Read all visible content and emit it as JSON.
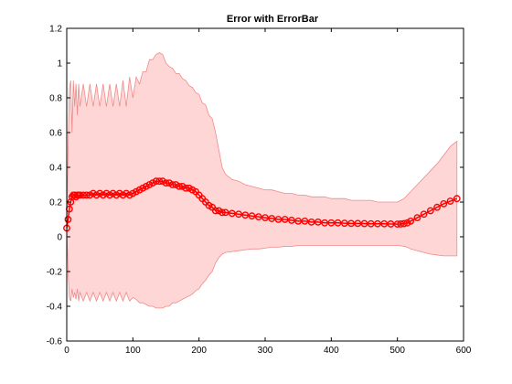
{
  "chart_data": {
    "type": "area",
    "title": "Error with ErrorBar",
    "xlabel": "",
    "ylabel": "",
    "xlim": [
      0,
      600
    ],
    "ylim": [
      -0.6,
      1.2
    ],
    "grid": false,
    "x_ticks": [
      0,
      100,
      200,
      300,
      400,
      500,
      600
    ],
    "x_tick_labels": [
      "0",
      "100",
      "200",
      "300",
      "400",
      "500",
      "600"
    ],
    "y_ticks": [
      -0.6,
      -0.4,
      -0.2,
      0,
      0.2,
      0.4,
      0.6,
      0.8,
      1,
      1.2
    ],
    "y_tick_labels": [
      "-0.6",
      "-0.4",
      "-0.2",
      "0",
      "0.2",
      "0.4",
      "0.6",
      "0.8",
      "1",
      "1.2"
    ],
    "colors": {
      "band_fill": "#ffd6d6",
      "band_edge": "#f08a8a",
      "line": "#ff0000"
    },
    "series": [
      {
        "marker": "circle",
        "x": [
          0,
          2,
          4,
          6,
          8,
          10,
          12,
          14,
          16,
          18,
          20,
          25,
          30,
          35,
          40,
          45,
          50,
          55,
          60,
          65,
          70,
          75,
          80,
          85,
          90,
          95,
          100,
          105,
          110,
          115,
          120,
          125,
          130,
          135,
          140,
          145,
          150,
          155,
          160,
          165,
          170,
          175,
          180,
          185,
          190,
          195,
          200,
          205,
          210,
          215,
          220,
          225,
          230,
          235,
          240,
          250,
          260,
          270,
          280,
          290,
          300,
          310,
          320,
          330,
          340,
          350,
          360,
          370,
          380,
          390,
          400,
          410,
          420,
          430,
          440,
          450,
          460,
          470,
          480,
          490,
          500,
          505,
          510,
          515,
          520,
          530,
          540,
          550,
          560,
          570,
          580,
          590
        ],
        "y": [
          0.05,
          0.1,
          0.16,
          0.2,
          0.23,
          0.24,
          0.24,
          0.23,
          0.24,
          0.24,
          0.24,
          0.24,
          0.24,
          0.24,
          0.25,
          0.24,
          0.25,
          0.24,
          0.25,
          0.24,
          0.25,
          0.24,
          0.25,
          0.24,
          0.25,
          0.24,
          0.25,
          0.26,
          0.27,
          0.28,
          0.29,
          0.3,
          0.31,
          0.32,
          0.32,
          0.32,
          0.31,
          0.31,
          0.3,
          0.3,
          0.29,
          0.29,
          0.28,
          0.28,
          0.27,
          0.26,
          0.24,
          0.22,
          0.2,
          0.18,
          0.17,
          0.15,
          0.15,
          0.14,
          0.14,
          0.135,
          0.13,
          0.125,
          0.12,
          0.115,
          0.11,
          0.105,
          0.1,
          0.1,
          0.095,
          0.09,
          0.09,
          0.085,
          0.085,
          0.08,
          0.08,
          0.08,
          0.078,
          0.077,
          0.077,
          0.076,
          0.075,
          0.075,
          0.075,
          0.074,
          0.073,
          0.074,
          0.076,
          0.08,
          0.09,
          0.11,
          0.13,
          0.15,
          0.17,
          0.19,
          0.205,
          0.22
        ],
        "upper": [
          0.06,
          0.5,
          0.85,
          0.9,
          0.6,
          0.9,
          0.75,
          0.88,
          0.7,
          0.88,
          0.75,
          0.88,
          0.75,
          0.88,
          0.75,
          0.88,
          0.75,
          0.88,
          0.75,
          0.88,
          0.75,
          0.88,
          0.75,
          0.9,
          0.75,
          0.92,
          0.8,
          0.92,
          0.88,
          0.95,
          0.95,
          1.02,
          1.02,
          1.05,
          1.06,
          1.05,
          1.0,
          0.98,
          0.97,
          0.94,
          0.94,
          0.91,
          0.9,
          0.87,
          0.86,
          0.83,
          0.82,
          0.77,
          0.76,
          0.7,
          0.68,
          0.6,
          0.5,
          0.4,
          0.36,
          0.33,
          0.32,
          0.3,
          0.29,
          0.28,
          0.27,
          0.27,
          0.26,
          0.25,
          0.25,
          0.24,
          0.24,
          0.23,
          0.23,
          0.23,
          0.22,
          0.22,
          0.22,
          0.21,
          0.21,
          0.21,
          0.21,
          0.2,
          0.2,
          0.2,
          0.2,
          0.21,
          0.22,
          0.24,
          0.26,
          0.3,
          0.34,
          0.38,
          0.42,
          0.47,
          0.52,
          0.55
        ],
        "lower": [
          0.04,
          -0.2,
          -0.35,
          -0.37,
          -0.3,
          -0.35,
          -0.32,
          -0.36,
          -0.3,
          -0.37,
          -0.32,
          -0.37,
          -0.32,
          -0.37,
          -0.32,
          -0.37,
          -0.32,
          -0.37,
          -0.32,
          -0.37,
          -0.32,
          -0.37,
          -0.32,
          -0.37,
          -0.32,
          -0.37,
          -0.35,
          -0.36,
          -0.38,
          -0.38,
          -0.39,
          -0.4,
          -0.4,
          -0.41,
          -0.41,
          -0.41,
          -0.4,
          -0.4,
          -0.38,
          -0.38,
          -0.37,
          -0.36,
          -0.35,
          -0.34,
          -0.33,
          -0.31,
          -0.3,
          -0.27,
          -0.25,
          -0.22,
          -0.2,
          -0.15,
          -0.12,
          -0.1,
          -0.09,
          -0.085,
          -0.08,
          -0.075,
          -0.07,
          -0.07,
          -0.065,
          -0.06,
          -0.06,
          -0.055,
          -0.055,
          -0.05,
          -0.05,
          -0.05,
          -0.05,
          -0.05,
          -0.05,
          -0.05,
          -0.05,
          -0.05,
          -0.05,
          -0.05,
          -0.05,
          -0.05,
          -0.05,
          -0.05,
          -0.05,
          -0.052,
          -0.055,
          -0.06,
          -0.07,
          -0.08,
          -0.09,
          -0.1,
          -0.105,
          -0.11,
          -0.11,
          -0.11
        ]
      }
    ]
  }
}
